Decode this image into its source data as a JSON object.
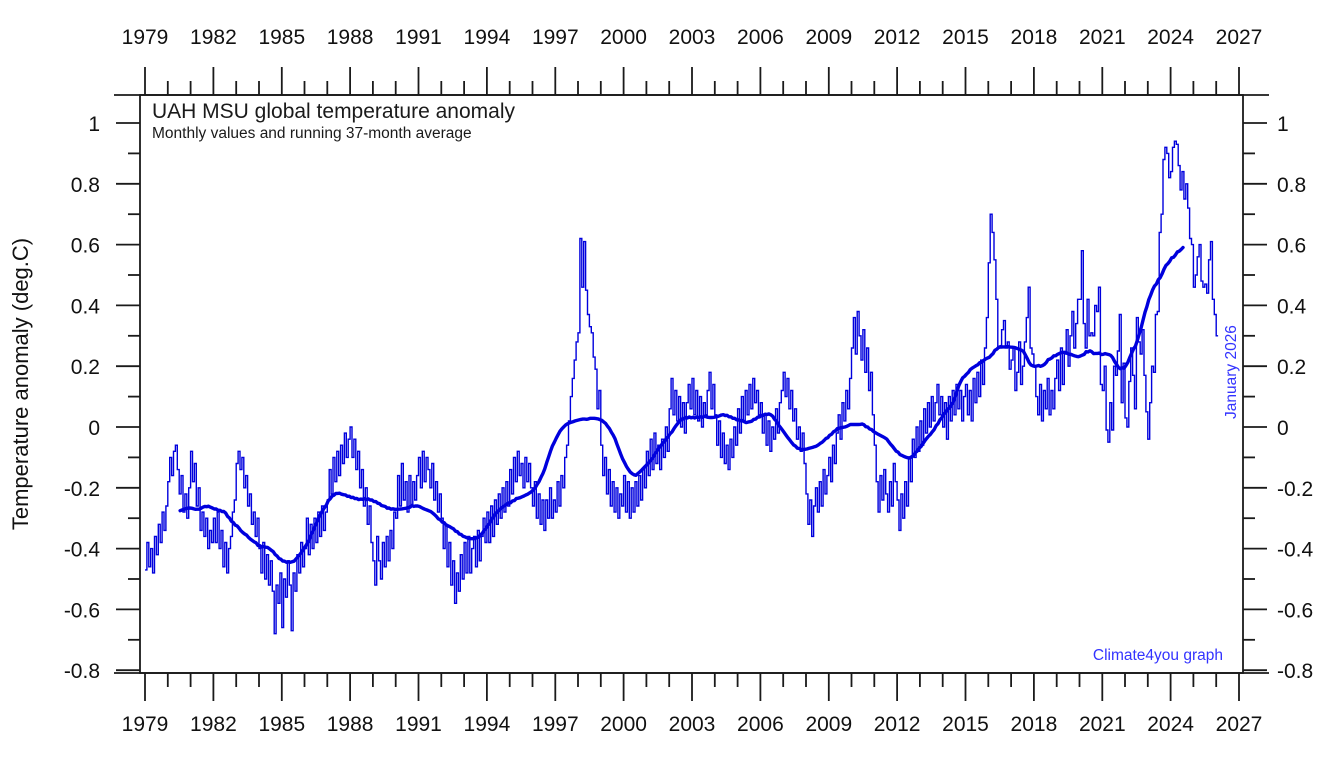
{
  "page": {
    "background": "#ffffff"
  },
  "chart_data": {
    "type": "line",
    "title": "UAH MSU global temperature anomaly",
    "subtitle": "Monthly values and running 37-month average",
    "ylabel": "Temperature anomaly (deg.C)",
    "xlabel": "",
    "legend": "none",
    "grid": false,
    "colors": {
      "series": "#0000dd",
      "annotation": "#3333ff",
      "axis": "#1a1a1a",
      "text": "#111111"
    },
    "annotations": {
      "watermark": "Climate4you graph",
      "latest_month": "January 2026"
    },
    "xlim": [
      1978.78,
      2027.17
    ],
    "ylim": [
      -0.81,
      1.09
    ],
    "x_tick_years": [
      1979,
      1982,
      1985,
      1988,
      1991,
      1994,
      1997,
      2000,
      2003,
      2006,
      2009,
      2012,
      2015,
      2018,
      2021,
      2024,
      2027
    ],
    "x_minor_step_years": 1,
    "y_tick_values": [
      -0.8,
      -0.6,
      -0.4,
      -0.2,
      0,
      0.2,
      0.4,
      0.6,
      0.8,
      1
    ],
    "y_tick_labels": [
      "-0.8",
      "-0.6",
      "-0.4",
      "-0.2",
      "0",
      "0.2",
      "0.4",
      "0.6",
      "0.8",
      "1"
    ],
    "y_minor_step": 0.1,
    "series": [
      {
        "name": "Monthly values",
        "style": "step-thin",
        "start": "1979-01",
        "interval": "month",
        "values": [
          -0.47,
          -0.38,
          -0.46,
          -0.4,
          -0.48,
          -0.36,
          -0.42,
          -0.32,
          -0.38,
          -0.28,
          -0.34,
          -0.26,
          -0.18,
          -0.1,
          -0.16,
          -0.08,
          -0.06,
          -0.14,
          -0.22,
          -0.16,
          -0.28,
          -0.22,
          -0.3,
          -0.2,
          -0.08,
          -0.18,
          -0.12,
          -0.26,
          -0.2,
          -0.34,
          -0.28,
          -0.36,
          -0.3,
          -0.4,
          -0.34,
          -0.38,
          -0.3,
          -0.38,
          -0.28,
          -0.4,
          -0.34,
          -0.46,
          -0.38,
          -0.48,
          -0.4,
          -0.36,
          -0.28,
          -0.24,
          -0.12,
          -0.08,
          -0.14,
          -0.1,
          -0.2,
          -0.16,
          -0.26,
          -0.22,
          -0.32,
          -0.28,
          -0.36,
          -0.3,
          -0.4,
          -0.48,
          -0.38,
          -0.5,
          -0.42,
          -0.52,
          -0.44,
          -0.54,
          -0.68,
          -0.52,
          -0.58,
          -0.48,
          -0.66,
          -0.5,
          -0.56,
          -0.44,
          -0.52,
          -0.67,
          -0.48,
          -0.54,
          -0.42,
          -0.48,
          -0.38,
          -0.46,
          -0.4,
          -0.3,
          -0.42,
          -0.32,
          -0.4,
          -0.3,
          -0.38,
          -0.28,
          -0.36,
          -0.26,
          -0.34,
          -0.28,
          -0.24,
          -0.14,
          -0.22,
          -0.1,
          -0.18,
          -0.08,
          -0.16,
          -0.06,
          -0.12,
          -0.02,
          -0.1,
          -0.04,
          0.0,
          -0.1,
          -0.04,
          -0.14,
          -0.08,
          -0.2,
          -0.14,
          -0.26,
          -0.2,
          -0.32,
          -0.26,
          -0.38,
          -0.44,
          -0.52,
          -0.36,
          -0.44,
          -0.5,
          -0.38,
          -0.46,
          -0.36,
          -0.44,
          -0.34,
          -0.4,
          -0.28,
          -0.3,
          -0.16,
          -0.26,
          -0.12,
          -0.24,
          -0.18,
          -0.28,
          -0.16,
          -0.26,
          -0.18,
          -0.24,
          -0.16,
          -0.1,
          -0.2,
          -0.08,
          -0.18,
          -0.1,
          -0.14,
          -0.2,
          -0.12,
          -0.24,
          -0.18,
          -0.28,
          -0.22,
          -0.3,
          -0.4,
          -0.32,
          -0.46,
          -0.38,
          -0.52,
          -0.44,
          -0.58,
          -0.48,
          -0.54,
          -0.42,
          -0.5,
          -0.38,
          -0.48,
          -0.36,
          -0.48,
          -0.4,
          -0.36,
          -0.46,
          -0.34,
          -0.44,
          -0.36,
          -0.3,
          -0.38,
          -0.28,
          -0.38,
          -0.26,
          -0.36,
          -0.24,
          -0.32,
          -0.22,
          -0.3,
          -0.2,
          -0.28,
          -0.18,
          -0.26,
          -0.14,
          -0.22,
          -0.1,
          -0.18,
          -0.08,
          -0.16,
          -0.12,
          -0.2,
          -0.1,
          -0.18,
          -0.12,
          -0.2,
          -0.26,
          -0.18,
          -0.3,
          -0.22,
          -0.32,
          -0.24,
          -0.34,
          -0.24,
          -0.3,
          -0.2,
          -0.3,
          -0.24,
          -0.28,
          -0.18,
          -0.26,
          -0.16,
          -0.2,
          -0.1,
          -0.06,
          0.02,
          0.1,
          0.16,
          0.22,
          0.28,
          0.31,
          0.62,
          0.46,
          0.61,
          0.45,
          0.37,
          0.33,
          0.31,
          0.23,
          0.19,
          0.06,
          0.12,
          -0.06,
          -0.16,
          -0.1,
          -0.22,
          -0.14,
          -0.26,
          -0.18,
          -0.28,
          -0.2,
          -0.3,
          -0.22,
          -0.26,
          -0.16,
          -0.28,
          -0.18,
          -0.3,
          -0.2,
          -0.28,
          -0.18,
          -0.26,
          -0.16,
          -0.24,
          -0.14,
          -0.2,
          -0.08,
          -0.16,
          -0.04,
          -0.14,
          -0.02,
          -0.12,
          -0.06,
          -0.14,
          -0.04,
          -0.1,
          0.0,
          -0.08,
          0.06,
          0.16,
          0.04,
          0.12,
          0.02,
          0.1,
          0.0,
          0.08,
          -0.02,
          0.08,
          0.14,
          0.06,
          0.16,
          0.04,
          0.12,
          0.02,
          0.1,
          0.0,
          0.08,
          0.04,
          0.12,
          0.18,
          0.06,
          0.14,
          0.04,
          -0.06,
          0.02,
          -0.1,
          -0.02,
          -0.12,
          -0.06,
          -0.14,
          -0.04,
          -0.1,
          0.0,
          -0.06,
          0.06,
          -0.02,
          0.1,
          0.02,
          0.12,
          0.04,
          0.14,
          0.06,
          0.16,
          0.08,
          0.12,
          0.04,
          0.08,
          -0.02,
          0.04,
          -0.06,
          0.02,
          -0.08,
          0.0,
          -0.04,
          0.06,
          -0.02,
          0.08,
          0.12,
          0.18,
          0.1,
          0.16,
          0.06,
          0.12,
          0.02,
          0.06,
          -0.04,
          0.0,
          -0.08,
          -0.02,
          -0.12,
          -0.22,
          -0.32,
          -0.24,
          -0.36,
          -0.26,
          -0.2,
          -0.28,
          -0.18,
          -0.26,
          -0.14,
          -0.22,
          -0.16,
          -0.1,
          -0.18,
          -0.06,
          -0.12,
          -0.02,
          0.04,
          -0.04,
          0.08,
          0.02,
          0.12,
          0.06,
          0.16,
          0.26,
          0.36,
          0.24,
          0.38,
          0.3,
          0.22,
          0.32,
          0.18,
          0.26,
          0.12,
          0.18,
          0.04,
          -0.06,
          -0.18,
          -0.28,
          -0.16,
          -0.24,
          -0.14,
          -0.22,
          -0.28,
          -0.18,
          -0.26,
          -0.12,
          -0.18,
          -0.24,
          -0.34,
          -0.22,
          -0.3,
          -0.18,
          -0.26,
          -0.1,
          -0.18,
          -0.04,
          -0.1,
          0.0,
          -0.08,
          0.02,
          -0.06,
          0.06,
          -0.02,
          0.08,
          0.0,
          0.1,
          0.02,
          0.08,
          0.14,
          0.04,
          0.1,
          0.0,
          0.08,
          -0.04,
          0.1,
          0.02,
          0.12,
          0.04,
          0.14,
          0.06,
          0.12,
          0.02,
          0.1,
          0.14,
          0.04,
          0.12,
          0.02,
          0.16,
          0.08,
          0.18,
          0.1,
          0.22,
          0.14,
          0.26,
          0.36,
          0.54,
          0.7,
          0.64,
          0.55,
          0.42,
          0.26,
          0.26,
          0.32,
          0.35,
          0.26,
          0.28,
          0.19,
          0.22,
          0.26,
          0.12,
          0.18,
          0.28,
          0.14,
          0.2,
          0.28,
          0.36,
          0.46,
          0.26,
          0.24,
          0.2,
          0.1,
          0.04,
          0.14,
          0.02,
          0.12,
          0.06,
          0.16,
          0.04,
          0.12,
          0.06,
          0.16,
          0.22,
          0.12,
          0.26,
          0.14,
          0.24,
          0.32,
          0.2,
          0.3,
          0.38,
          0.26,
          0.34,
          0.42,
          0.42,
          0.58,
          0.34,
          0.26,
          0.42,
          0.3,
          0.31,
          0.3,
          0.4,
          0.38,
          0.46,
          0.14,
          0.12,
          0.2,
          -0.01,
          -0.05,
          0.08,
          -0.01,
          0.2,
          0.17,
          0.25,
          0.37,
          0.08,
          0.21,
          0.03,
          0.0,
          0.15,
          0.26,
          0.17,
          0.06,
          0.36,
          0.28,
          0.24,
          0.32,
          0.17,
          0.05,
          -0.04,
          0.08,
          0.2,
          0.18,
          0.37,
          0.38,
          0.64,
          0.7,
          0.88,
          0.92,
          0.9,
          0.82,
          0.84,
          0.92,
          0.94,
          0.93,
          0.86,
          0.78,
          0.84,
          0.75,
          0.8,
          0.72,
          0.62,
          0.6,
          0.46,
          0.5,
          0.56,
          0.6,
          0.48,
          0.46,
          0.47,
          0.44,
          0.55,
          0.61,
          0.42,
          0.37,
          0.3
        ]
      },
      {
        "name": "Running 37-month average",
        "style": "thick",
        "derived_from": "Monthly values",
        "window_months": 37,
        "centered": true
      }
    ]
  }
}
